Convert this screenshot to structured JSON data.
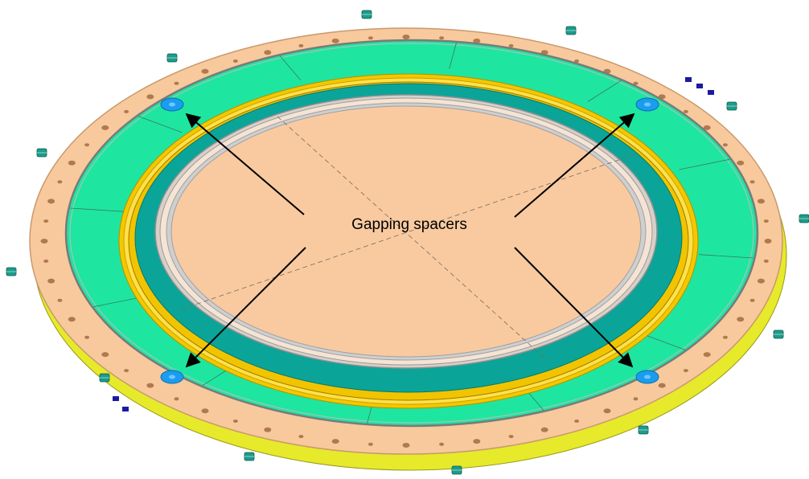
{
  "label": {
    "text": "Gapping spacers"
  },
  "colors": {
    "flange": "#f7c99c",
    "flange_edge": "#c99a6e",
    "base_yellow": "#e6ea2a",
    "green": "#1ee6a0",
    "teal": "#0aa598",
    "gold": "#f4c800",
    "gold_light": "#ffe14a",
    "center": "#f9caa0",
    "spacer_blue": "#1a9df0",
    "bolt": "#1d9b8a",
    "arrow": "#000000"
  },
  "counts": {
    "spacers": 4,
    "arrows": 4
  }
}
